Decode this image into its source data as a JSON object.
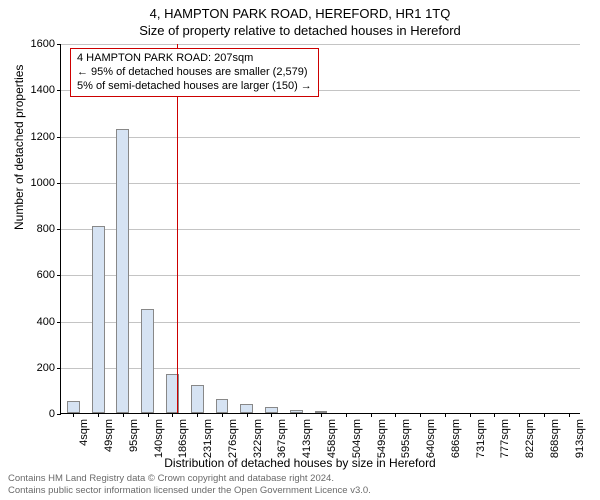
{
  "titles": {
    "main": "4, HAMPTON PARK ROAD, HEREFORD, HR1 1TQ",
    "sub": "Size of property relative to detached houses in Hereford"
  },
  "chart": {
    "type": "histogram",
    "ylabel": "Number of detached properties",
    "xlabel": "Distribution of detached houses by size in Hereford",
    "ylim": [
      0,
      1600
    ],
    "ytick_step": 200,
    "background_color": "#ffffff",
    "grid_color": "#bbbbbb",
    "bar_fill": "#d6e3f3",
    "bar_border": "#888888",
    "marker_line_color": "#cc0000",
    "bar_width": 0.52,
    "x_categories": [
      "4sqm",
      "49sqm",
      "95sqm",
      "140sqm",
      "186sqm",
      "231sqm",
      "276sqm",
      "322sqm",
      "367sqm",
      "413sqm",
      "458sqm",
      "504sqm",
      "549sqm",
      "595sqm",
      "640sqm",
      "686sqm",
      "731sqm",
      "777sqm",
      "822sqm",
      "868sqm",
      "913sqm"
    ],
    "y_values": [
      50,
      810,
      1230,
      450,
      170,
      120,
      60,
      40,
      25,
      15,
      10,
      0,
      0,
      0,
      0,
      0,
      0,
      0,
      0,
      0,
      0
    ],
    "marker_x_sqm": 207,
    "x_domain_sqm": [
      4,
      913
    ],
    "annotation": {
      "lines": [
        "4 HAMPTON PARK ROAD: 207sqm",
        "← 95% of detached houses are smaller (2,579)",
        "5% of semi-detached houses are larger (150) →"
      ],
      "border_color": "#cc0000",
      "fontsize": 11
    },
    "title_fontsize": 13,
    "axis_fontsize": 12,
    "tick_fontsize": 11
  },
  "footer": {
    "line1": "Contains HM Land Registry data © Crown copyright and database right 2024.",
    "line2": "Contains public sector information licensed under the Open Government Licence v3.0."
  }
}
